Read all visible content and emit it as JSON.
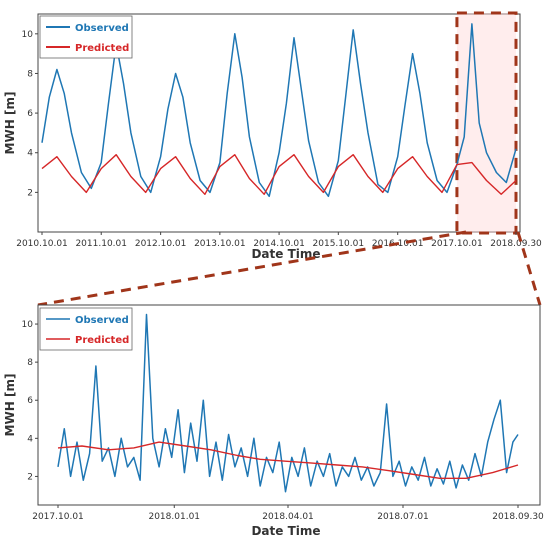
{
  "chart_data": [
    {
      "type": "line",
      "title": "",
      "xlabel": "Date Time",
      "ylabel": "MWH [m]",
      "x_range": [
        "2010-10-01",
        "2018-09-30"
      ],
      "ylim": [
        0,
        11
      ],
      "yticks": [
        "2",
        "4",
        "6",
        "8",
        "10"
      ],
      "xticks": [
        "2010.10.01",
        "2011.10.01",
        "2012.10.01",
        "2013.10.01",
        "2014.10.01",
        "2015.10.01",
        "2016.10.01",
        "2017.10.01",
        "2018.09.30"
      ],
      "legend": {
        "placement": "top-left"
      },
      "highlight": {
        "x_from": "2017-10-01",
        "x_to": "2018-09-30"
      },
      "series": [
        {
          "name": "Observed",
          "color": "#1f77b4",
          "x": [
            "2010-10-01",
            "2010-11-15",
            "2011-01-01",
            "2011-02-15",
            "2011-04-01",
            "2011-06-01",
            "2011-08-01",
            "2011-10-01",
            "2011-11-15",
            "2012-01-01",
            "2012-02-15",
            "2012-04-01",
            "2012-06-01",
            "2012-08-01",
            "2012-10-01",
            "2012-11-15",
            "2013-01-01",
            "2013-02-15",
            "2013-04-01",
            "2013-06-01",
            "2013-08-01",
            "2013-10-01",
            "2013-11-15",
            "2014-01-01",
            "2014-02-15",
            "2014-04-01",
            "2014-06-01",
            "2014-08-01",
            "2014-10-01",
            "2014-11-15",
            "2015-01-01",
            "2015-02-15",
            "2015-04-01",
            "2015-06-01",
            "2015-08-01",
            "2015-10-01",
            "2015-11-15",
            "2016-01-01",
            "2016-02-15",
            "2016-04-01",
            "2016-06-01",
            "2016-08-01",
            "2016-10-01",
            "2016-11-15",
            "2017-01-01",
            "2017-02-15",
            "2017-04-01",
            "2017-06-01",
            "2017-08-01",
            "2017-10-01",
            "2017-11-15",
            "2018-01-01",
            "2018-02-15",
            "2018-04-01",
            "2018-06-01",
            "2018-08-01",
            "2018-09-30"
          ],
          "values": [
            4.5,
            6.8,
            8.2,
            7.0,
            5.0,
            3.0,
            2.2,
            3.5,
            6.5,
            9.5,
            7.5,
            5.0,
            2.8,
            2.0,
            3.8,
            6.2,
            8.0,
            6.8,
            4.5,
            2.6,
            2.0,
            3.5,
            7.0,
            10.0,
            7.8,
            4.8,
            2.5,
            1.8,
            4.0,
            6.5,
            9.8,
            7.2,
            4.6,
            2.5,
            1.8,
            3.6,
            6.8,
            10.2,
            7.5,
            5.0,
            2.4,
            2.0,
            3.8,
            6.4,
            9.0,
            7.0,
            4.5,
            2.6,
            2.0,
            3.4,
            4.8,
            10.5,
            5.5,
            4.0,
            3.0,
            2.5,
            4.2
          ]
        },
        {
          "name": "Predicted",
          "color": "#d62728",
          "x": [
            "2010-10-01",
            "2011-01-01",
            "2011-04-01",
            "2011-07-01",
            "2011-10-01",
            "2012-01-01",
            "2012-04-01",
            "2012-07-01",
            "2012-10-01",
            "2013-01-01",
            "2013-04-01",
            "2013-07-01",
            "2013-10-01",
            "2014-01-01",
            "2014-04-01",
            "2014-07-01",
            "2014-10-01",
            "2015-01-01",
            "2015-04-01",
            "2015-07-01",
            "2015-10-01",
            "2016-01-01",
            "2016-04-01",
            "2016-07-01",
            "2016-10-01",
            "2017-01-01",
            "2017-04-01",
            "2017-07-01",
            "2017-10-01",
            "2018-01-01",
            "2018-04-01",
            "2018-07-01",
            "2018-09-30"
          ],
          "values": [
            3.2,
            3.8,
            2.8,
            2.0,
            3.2,
            3.9,
            2.8,
            2.0,
            3.2,
            3.8,
            2.7,
            1.9,
            3.3,
            3.9,
            2.7,
            1.9,
            3.3,
            3.9,
            2.8,
            2.0,
            3.3,
            3.9,
            2.8,
            2.0,
            3.2,
            3.8,
            2.8,
            2.0,
            3.4,
            3.5,
            2.6,
            1.9,
            2.6
          ]
        }
      ]
    },
    {
      "type": "line",
      "title": "",
      "xlabel": "Date Time",
      "ylabel": "MWH [m]",
      "x_range": [
        "2017-10-01",
        "2018-09-30"
      ],
      "ylim": [
        0.5,
        11
      ],
      "yticks": [
        "2",
        "4",
        "6",
        "8",
        "10"
      ],
      "xticks": [
        "2017.10.01",
        "2018.01.01",
        "2018.04.01",
        "2018.07.01",
        "2018.09.30"
      ],
      "legend": {
        "placement": "top-left"
      },
      "series": [
        {
          "name": "Observed",
          "color": "#1f77b4",
          "x": [
            "2017-10-01",
            "2017-10-06",
            "2017-10-11",
            "2017-10-16",
            "2017-10-21",
            "2017-10-26",
            "2017-10-31",
            "2017-11-05",
            "2017-11-10",
            "2017-11-15",
            "2017-11-20",
            "2017-11-25",
            "2017-11-30",
            "2017-12-05",
            "2017-12-10",
            "2017-12-15",
            "2017-12-20",
            "2017-12-25",
            "2017-12-30",
            "2018-01-04",
            "2018-01-09",
            "2018-01-14",
            "2018-01-19",
            "2018-01-24",
            "2018-01-29",
            "2018-02-03",
            "2018-02-08",
            "2018-02-13",
            "2018-02-18",
            "2018-02-23",
            "2018-02-28",
            "2018-03-05",
            "2018-03-10",
            "2018-03-15",
            "2018-03-20",
            "2018-03-25",
            "2018-03-30",
            "2018-04-04",
            "2018-04-09",
            "2018-04-14",
            "2018-04-19",
            "2018-04-24",
            "2018-04-29",
            "2018-05-04",
            "2018-05-09",
            "2018-05-14",
            "2018-05-19",
            "2018-05-24",
            "2018-05-29",
            "2018-06-03",
            "2018-06-08",
            "2018-06-13",
            "2018-06-18",
            "2018-06-23",
            "2018-06-28",
            "2018-07-03",
            "2018-07-08",
            "2018-07-13",
            "2018-07-18",
            "2018-07-23",
            "2018-07-28",
            "2018-08-02",
            "2018-08-07",
            "2018-08-12",
            "2018-08-17",
            "2018-08-22",
            "2018-08-27",
            "2018-09-01",
            "2018-09-06",
            "2018-09-11",
            "2018-09-16",
            "2018-09-21",
            "2018-09-26",
            "2018-09-30"
          ],
          "values": [
            2.5,
            4.5,
            2.0,
            3.8,
            1.8,
            3.2,
            7.8,
            2.8,
            3.5,
            2.0,
            4.0,
            2.5,
            3.0,
            1.8,
            10.5,
            4.0,
            2.5,
            4.5,
            3.0,
            5.5,
            2.2,
            4.8,
            2.8,
            6.0,
            2.0,
            3.8,
            1.8,
            4.2,
            2.5,
            3.5,
            2.0,
            4.0,
            1.5,
            3.0,
            2.2,
            3.8,
            1.2,
            3.0,
            2.0,
            3.5,
            1.5,
            2.8,
            2.0,
            3.2,
            1.5,
            2.5,
            2.0,
            3.0,
            1.8,
            2.5,
            1.5,
            2.2,
            5.8,
            2.0,
            2.8,
            1.5,
            2.5,
            1.8,
            3.0,
            1.5,
            2.4,
            1.6,
            2.8,
            1.4,
            2.6,
            1.8,
            3.2,
            2.0,
            3.8,
            5.0,
            6.0,
            2.2,
            3.8,
            4.2
          ]
        },
        {
          "name": "Predicted",
          "color": "#d62728",
          "x": [
            "2017-10-01",
            "2017-10-20",
            "2017-11-10",
            "2017-11-30",
            "2017-12-20",
            "2018-01-10",
            "2018-01-30",
            "2018-02-20",
            "2018-03-10",
            "2018-03-30",
            "2018-04-20",
            "2018-05-10",
            "2018-05-30",
            "2018-06-20",
            "2018-07-10",
            "2018-07-30",
            "2018-08-20",
            "2018-09-10",
            "2018-09-30"
          ],
          "values": [
            3.5,
            3.6,
            3.4,
            3.5,
            3.8,
            3.6,
            3.4,
            3.1,
            2.9,
            2.8,
            2.7,
            2.6,
            2.5,
            2.3,
            2.1,
            1.9,
            1.9,
            2.2,
            2.6
          ]
        }
      ]
    }
  ]
}
